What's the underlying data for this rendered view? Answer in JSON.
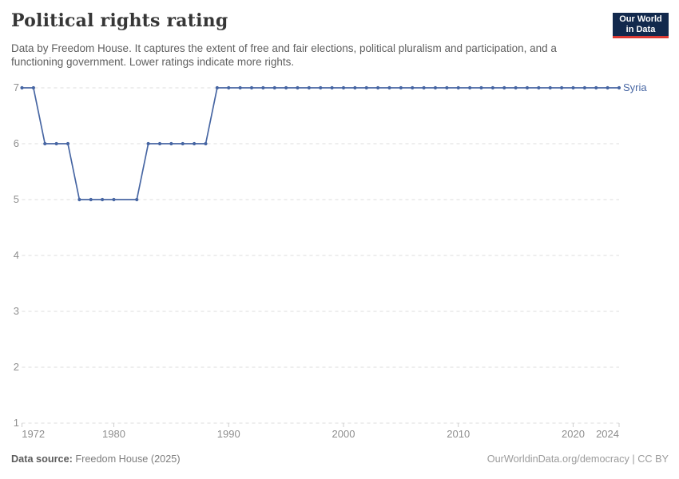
{
  "header": {
    "title": "Political rights rating",
    "subtitle": "Data by Freedom House. It captures the extent of free and fair elections, political pluralism and participation, and a functioning government. Lower ratings indicate more rights.",
    "logo": {
      "line1": "Our World",
      "line2": "in Data",
      "bg_color": "#12294d",
      "accent_color": "#dc3a34"
    }
  },
  "chart_data": {
    "type": "line",
    "title": "Political rights rating",
    "xlabel": "",
    "ylabel": "",
    "xlim": [
      1972,
      2024
    ],
    "ylim": [
      1,
      7
    ],
    "x_ticks": [
      1972,
      1980,
      1990,
      2000,
      2010,
      2020,
      2024
    ],
    "y_ticks": [
      1,
      2,
      3,
      4,
      5,
      6,
      7
    ],
    "grid": "horizontal-dashed",
    "legend_position": "end-of-line",
    "series": [
      {
        "name": "Syria",
        "color": "#4766a3",
        "points": [
          [
            1972,
            7
          ],
          [
            1973,
            7
          ],
          [
            1974,
            6
          ],
          [
            1975,
            6
          ],
          [
            1976,
            6
          ],
          [
            1977,
            5
          ],
          [
            1978,
            5
          ],
          [
            1979,
            5
          ],
          [
            1980,
            5
          ],
          [
            1982,
            5
          ],
          [
            1983,
            6
          ],
          [
            1984,
            6
          ],
          [
            1985,
            6
          ],
          [
            1986,
            6
          ],
          [
            1987,
            6
          ],
          [
            1988,
            6
          ],
          [
            1989,
            7
          ],
          [
            1990,
            7
          ],
          [
            1991,
            7
          ],
          [
            1992,
            7
          ],
          [
            1993,
            7
          ],
          [
            1994,
            7
          ],
          [
            1995,
            7
          ],
          [
            1996,
            7
          ],
          [
            1997,
            7
          ],
          [
            1998,
            7
          ],
          [
            1999,
            7
          ],
          [
            2000,
            7
          ],
          [
            2001,
            7
          ],
          [
            2002,
            7
          ],
          [
            2003,
            7
          ],
          [
            2004,
            7
          ],
          [
            2005,
            7
          ],
          [
            2006,
            7
          ],
          [
            2007,
            7
          ],
          [
            2008,
            7
          ],
          [
            2009,
            7
          ],
          [
            2010,
            7
          ],
          [
            2011,
            7
          ],
          [
            2012,
            7
          ],
          [
            2013,
            7
          ],
          [
            2014,
            7
          ],
          [
            2015,
            7
          ],
          [
            2016,
            7
          ],
          [
            2017,
            7
          ],
          [
            2018,
            7
          ],
          [
            2019,
            7
          ],
          [
            2020,
            7
          ],
          [
            2021,
            7
          ],
          [
            2022,
            7
          ],
          [
            2023,
            7
          ],
          [
            2024,
            7
          ]
        ]
      }
    ]
  },
  "footer": {
    "source_label": "Data source:",
    "source_value": " Freedom House (2025)",
    "credit": "OurWorldinData.org/democracy | CC BY"
  }
}
